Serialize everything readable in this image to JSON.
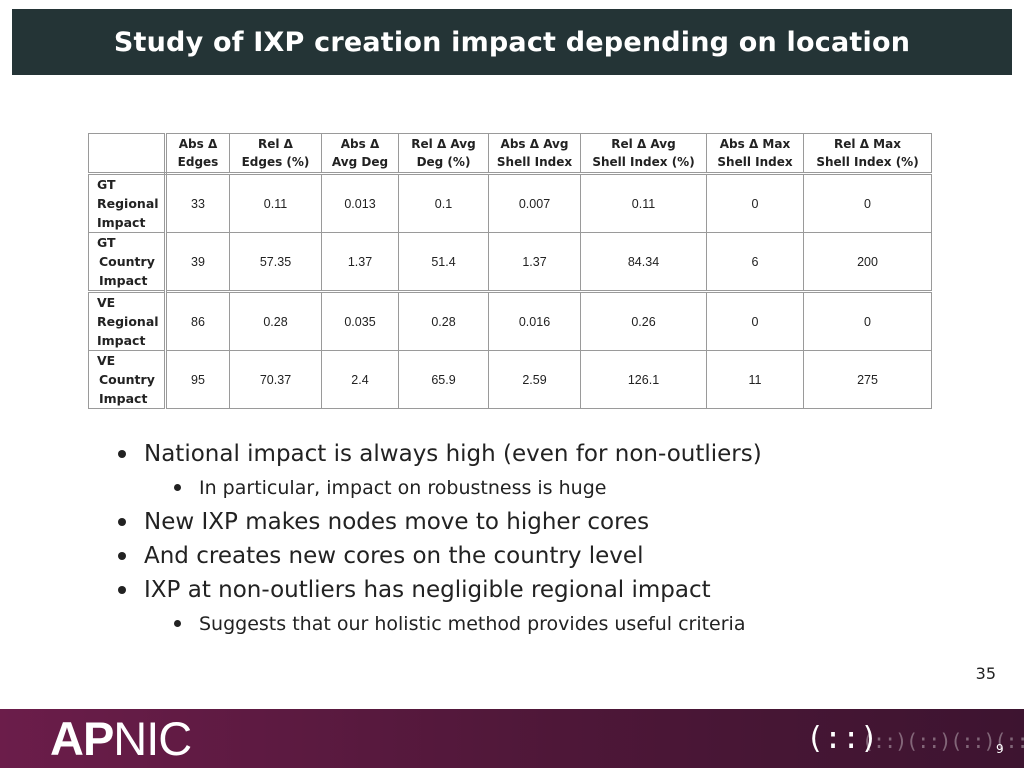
{
  "slide": {
    "title": "Study of IXP creation impact depending on location",
    "page_number": "35",
    "footer_page": "9"
  },
  "table": {
    "columns": [
      [
        "Abs Δ",
        "Edges"
      ],
      [
        "Rel Δ",
        "Edges (%)"
      ],
      [
        "Abs Δ",
        "Avg Deg"
      ],
      [
        "Rel Δ Avg",
        "Deg (%)"
      ],
      [
        "Abs Δ Avg",
        "Shell Index"
      ],
      [
        "Rel Δ Avg",
        "Shell Index (%)"
      ],
      [
        "Abs Δ Max",
        "Shell Index"
      ],
      [
        "Rel Δ Max",
        "Shell Index (%)"
      ]
    ],
    "rows": [
      {
        "label": [
          "GT",
          "Regional",
          "Impact"
        ],
        "cells": [
          "33",
          "0.11",
          "0.013",
          "0.1",
          "0.007",
          "0.11",
          "0",
          "0"
        ]
      },
      {
        "label": [
          "GT",
          "Country",
          "Impact"
        ],
        "cells": [
          "39",
          "57.35",
          "1.37",
          "51.4",
          "1.37",
          "84.34",
          "6",
          "200"
        ]
      },
      {
        "label": [
          "VE",
          "Regional",
          "Impact"
        ],
        "cells": [
          "86",
          "0.28",
          "0.035",
          "0.28",
          "0.016",
          "0.26",
          "0",
          "0"
        ]
      },
      {
        "label": [
          "VE",
          "Country",
          "Impact"
        ],
        "cells": [
          "95",
          "70.37",
          "2.4",
          "65.9",
          "2.59",
          "126.1",
          "11",
          "275"
        ]
      }
    ]
  },
  "bullets": [
    {
      "level": 1,
      "text": "National impact is always high (even for non-outliers)"
    },
    {
      "level": 2,
      "text": "In particular, impact on robustness is huge"
    },
    {
      "level": 1,
      "text": "New IXP makes nodes move to higher cores"
    },
    {
      "level": 1,
      "text": "And creates new cores on the country level"
    },
    {
      "level": 1,
      "text": "IXP at non-outliers has negligible regional impact"
    },
    {
      "level": 2,
      "text": "Suggests that our holistic method provides useful criteria"
    }
  ],
  "footer": {
    "logo_text_bold": "AP",
    "logo_text_rest": "NIC",
    "org_logo_symbol": "(::)",
    "org_logo_trail": "(::)(::)(::)(::)"
  },
  "colors": {
    "header_bg": "#243436",
    "footer_bg": "#5a1a40",
    "text": "#222222"
  }
}
